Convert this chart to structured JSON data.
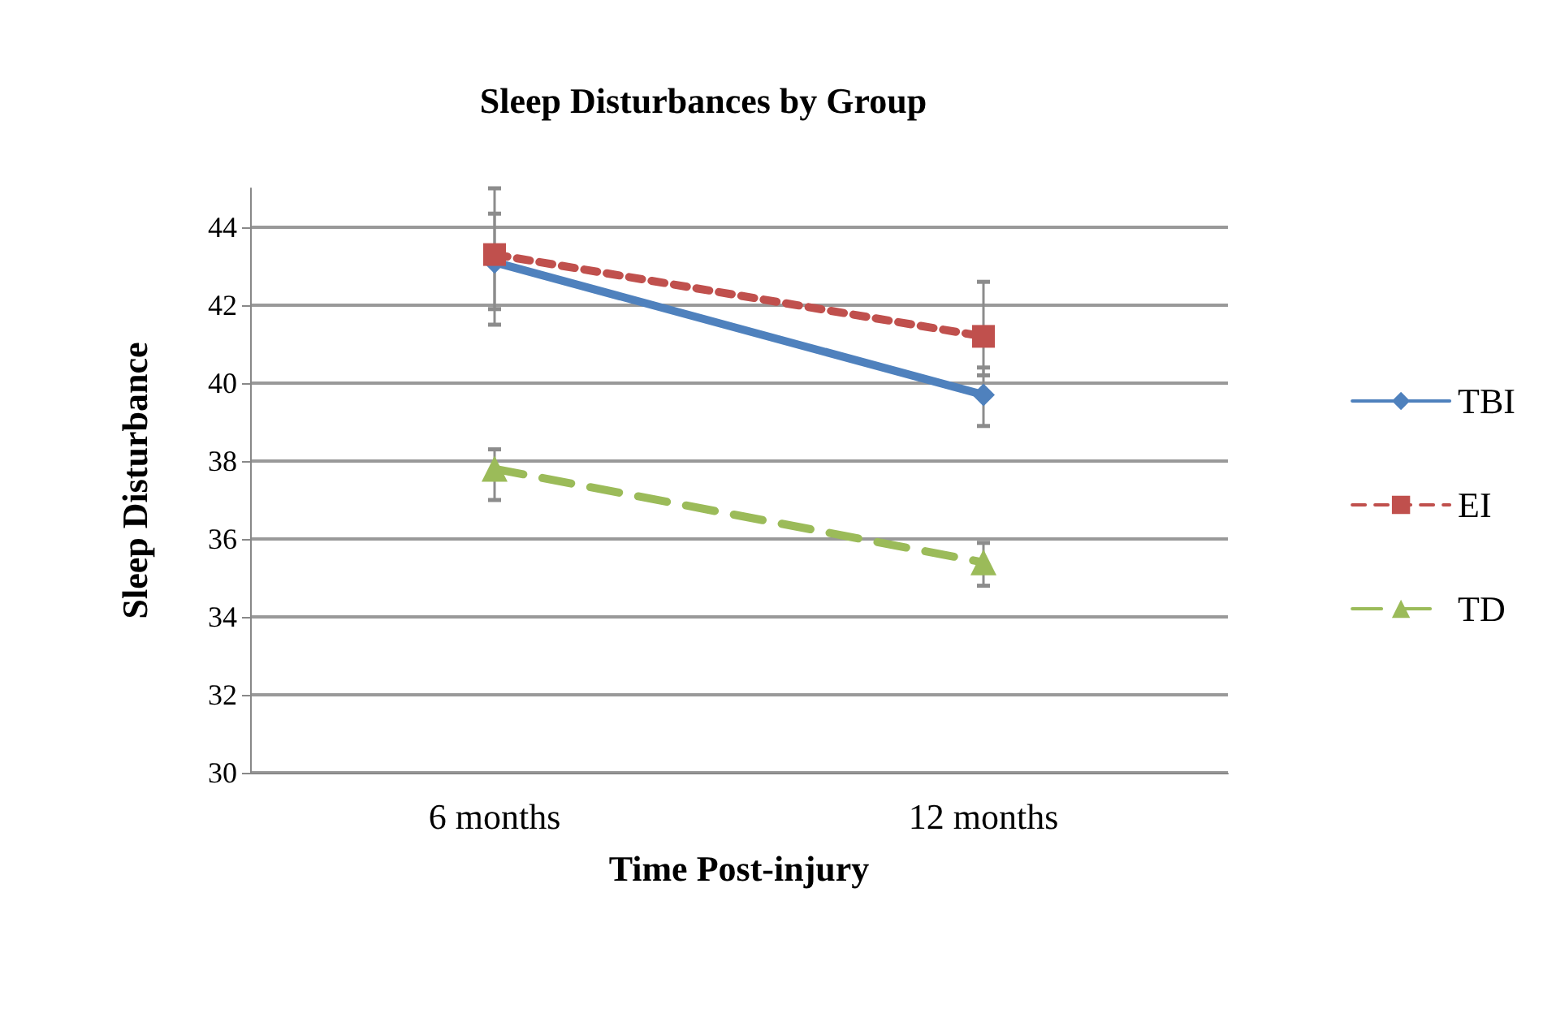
{
  "chart_data": {
    "type": "line",
    "title": "Sleep Disturbances by Group",
    "xlabel": "Time Post-injury",
    "ylabel": "Sleep Disturbance",
    "categories": [
      "6 months",
      "12 months"
    ],
    "series": [
      {
        "name": "TBI",
        "color": "#4f81bd",
        "values": [
          43.1,
          39.7
        ],
        "errors": [
          [
            41.9,
            44.35
          ],
          [
            38.9,
            40.4
          ]
        ],
        "marker": "diamond",
        "line_style": "solid"
      },
      {
        "name": "EI",
        "color": "#c0504d",
        "values": [
          43.3,
          41.2
        ],
        "errors": [
          [
            41.5,
            45.0
          ],
          [
            40.2,
            42.6
          ]
        ],
        "marker": "square",
        "line_style": "dotted"
      },
      {
        "name": "TD",
        "color": "#9bbb59",
        "values": [
          37.8,
          35.4
        ],
        "errors": [
          [
            37.0,
            38.3
          ],
          [
            34.8,
            35.9
          ]
        ],
        "marker": "triangle",
        "line_style": "dashed"
      }
    ],
    "ylim": [
      30,
      45
    ],
    "yticks": [
      30,
      32,
      34,
      36,
      38,
      40,
      42,
      44
    ],
    "grid": "y",
    "legend": "right"
  }
}
